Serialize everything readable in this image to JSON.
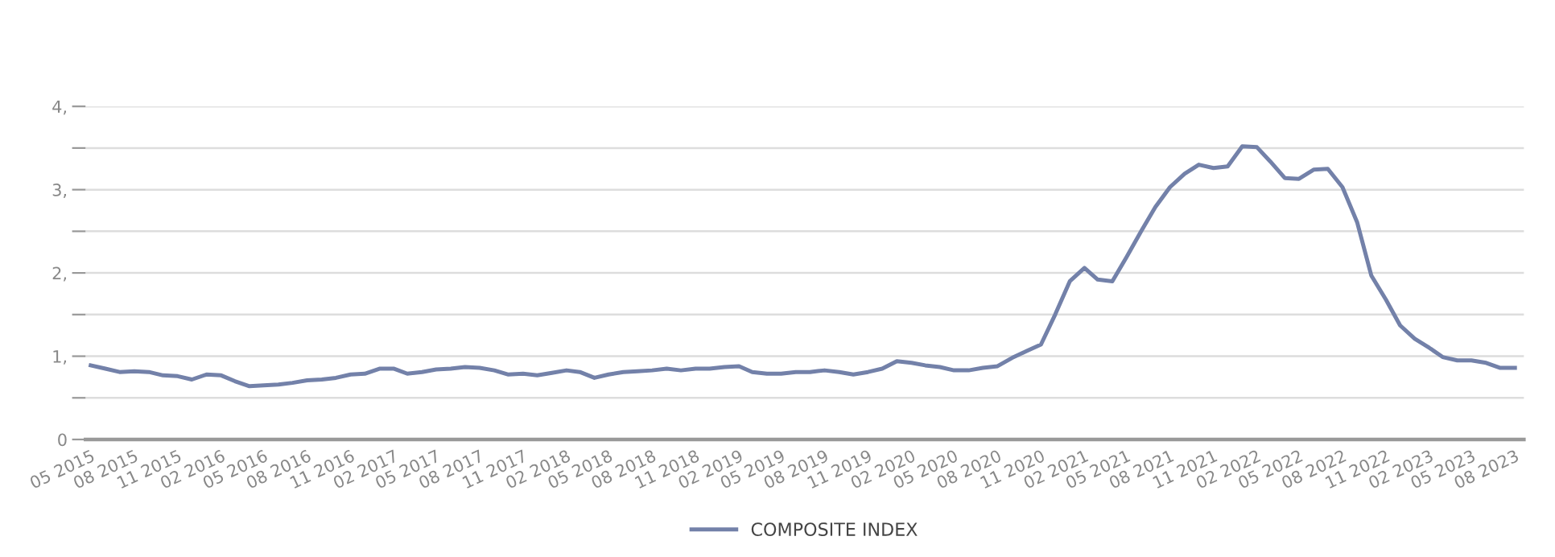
{
  "chart_data": {
    "type": "line",
    "x": [
      "2015-05",
      "2015-06",
      "2015-07",
      "2015-08",
      "2015-09",
      "2015-10",
      "2015-11",
      "2015-12",
      "2016-01",
      "2016-02",
      "2016-03",
      "2016-04",
      "2016-05",
      "2016-06",
      "2016-07",
      "2016-08",
      "2016-09",
      "2016-10",
      "2016-11",
      "2016-12",
      "2017-01",
      "2017-02",
      "2017-03",
      "2017-04",
      "2017-05",
      "2017-06",
      "2017-07",
      "2017-08",
      "2017-09",
      "2017-10",
      "2017-11",
      "2017-12",
      "2018-01",
      "2018-02",
      "2018-03",
      "2018-04",
      "2018-05",
      "2018-06",
      "2018-07",
      "2018-08",
      "2018-09",
      "2018-10",
      "2018-11",
      "2018-12",
      "2019-01",
      "2019-02",
      "2019-03",
      "2019-04",
      "2019-05",
      "2019-06",
      "2019-07",
      "2019-08",
      "2019-09",
      "2019-10",
      "2019-11",
      "2019-12",
      "2020-01",
      "2020-02",
      "2020-03",
      "2020-04",
      "2020-05",
      "2020-06",
      "2020-07",
      "2020-08",
      "2020-09",
      "2020-10",
      "2020-11",
      "2020-12",
      "2021-01",
      "2021-02",
      "2021-03",
      "2021-04",
      "2021-05",
      "2021-06",
      "2021-07",
      "2021-08",
      "2021-09",
      "2021-10",
      "2021-11",
      "2021-12",
      "2022-01",
      "2022-02",
      "2022-03",
      "2022-04",
      "2022-05",
      "2022-06",
      "2022-07",
      "2022-08",
      "2022-09",
      "2022-10",
      "2022-11",
      "2022-12",
      "2023-01",
      "2023-02",
      "2023-03",
      "2023-04",
      "2023-05",
      "2023-06",
      "2023-07",
      "2023-08"
    ],
    "series": [
      {
        "name": "COMPOSITE INDEX",
        "color": "#7381a9",
        "values": [
          0.89,
          0.85,
          0.81,
          0.82,
          0.81,
          0.77,
          0.76,
          0.72,
          0.78,
          0.77,
          0.7,
          0.64,
          0.65,
          0.66,
          0.68,
          0.71,
          0.72,
          0.74,
          0.78,
          0.79,
          0.85,
          0.85,
          0.79,
          0.81,
          0.84,
          0.85,
          0.87,
          0.86,
          0.83,
          0.78,
          0.79,
          0.77,
          0.8,
          0.83,
          0.81,
          0.74,
          0.78,
          0.81,
          0.82,
          0.83,
          0.85,
          0.83,
          0.85,
          0.85,
          0.87,
          0.88,
          0.81,
          0.79,
          0.79,
          0.81,
          0.81,
          0.83,
          0.81,
          0.78,
          0.81,
          0.85,
          0.94,
          0.92,
          0.89,
          0.87,
          0.83,
          0.83,
          0.86,
          0.88,
          0.98,
          1.06,
          1.14,
          1.5,
          1.9,
          2.06,
          1.92,
          1.9,
          2.19,
          2.5,
          2.79,
          3.03,
          3.19,
          3.3,
          3.26,
          3.28,
          3.52,
          3.51,
          3.34,
          3.14,
          3.13,
          3.24,
          3.25,
          3.03,
          2.61,
          1.97,
          1.68,
          1.37,
          1.21,
          1.1,
          0.99,
          0.95,
          0.95,
          0.92,
          0.86,
          0.86
        ]
      }
    ],
    "xlim": [
      "2015-04-20",
      "2023-08-20"
    ],
    "xticks": [
      {
        "value": "2015-05",
        "label": "05 2015"
      },
      {
        "value": "2015-08",
        "label": "08 2015"
      },
      {
        "value": "2015-11",
        "label": "11 2015"
      },
      {
        "value": "2016-02",
        "label": "02 2016"
      },
      {
        "value": "2016-05",
        "label": "05 2016"
      },
      {
        "value": "2016-08",
        "label": "08 2016"
      },
      {
        "value": "2016-11",
        "label": "11 2016"
      },
      {
        "value": "2017-02",
        "label": "02 2017"
      },
      {
        "value": "2017-05",
        "label": "05 2017"
      },
      {
        "value": "2017-08",
        "label": "08 2017"
      },
      {
        "value": "2017-11",
        "label": "11 2017"
      },
      {
        "value": "2018-02",
        "label": "02 2018"
      },
      {
        "value": "2018-05",
        "label": "05 2018"
      },
      {
        "value": "2018-08",
        "label": "08 2018"
      },
      {
        "value": "2018-11",
        "label": "11 2018"
      },
      {
        "value": "2019-02",
        "label": "02 2019"
      },
      {
        "value": "2019-05",
        "label": "05 2019"
      },
      {
        "value": "2019-08",
        "label": "08 2019"
      },
      {
        "value": "2019-11",
        "label": "11 2019"
      },
      {
        "value": "2020-02",
        "label": "02 2020"
      },
      {
        "value": "2020-05",
        "label": "05 2020"
      },
      {
        "value": "2020-08",
        "label": "08 2020"
      },
      {
        "value": "2020-11",
        "label": "11 2020"
      },
      {
        "value": "2021-02",
        "label": "02 2021"
      },
      {
        "value": "2021-05",
        "label": "05 2021"
      },
      {
        "value": "2021-08",
        "label": "08 2021"
      },
      {
        "value": "2021-11",
        "label": "11 2021"
      },
      {
        "value": "2022-02",
        "label": "02 2022"
      },
      {
        "value": "2022-05",
        "label": "05 2022"
      },
      {
        "value": "2022-08",
        "label": "08 2022"
      },
      {
        "value": "2022-11",
        "label": "11 2022"
      },
      {
        "value": "2023-02",
        "label": "02 2023"
      },
      {
        "value": "2023-05",
        "label": "05 2023"
      },
      {
        "value": "2023-08",
        "label": "08 2023"
      }
    ],
    "ylim": [
      0,
      4
    ],
    "yticks": [
      0,
      {
        "value": 0.5,
        "label": null
      },
      {
        "value": 1,
        "label": "1,"
      },
      {
        "value": 1.5,
        "label": null
      },
      {
        "value": 2,
        "label": "2,"
      },
      {
        "value": 2.5,
        "label": null
      },
      {
        "value": 3,
        "label": "3,"
      },
      {
        "value": 3.5,
        "label": null
      },
      {
        "value": 4,
        "label": "4,"
      }
    ],
    "grid": "y",
    "legend": "bottom",
    "marker": "none",
    "line_style": "solid"
  }
}
